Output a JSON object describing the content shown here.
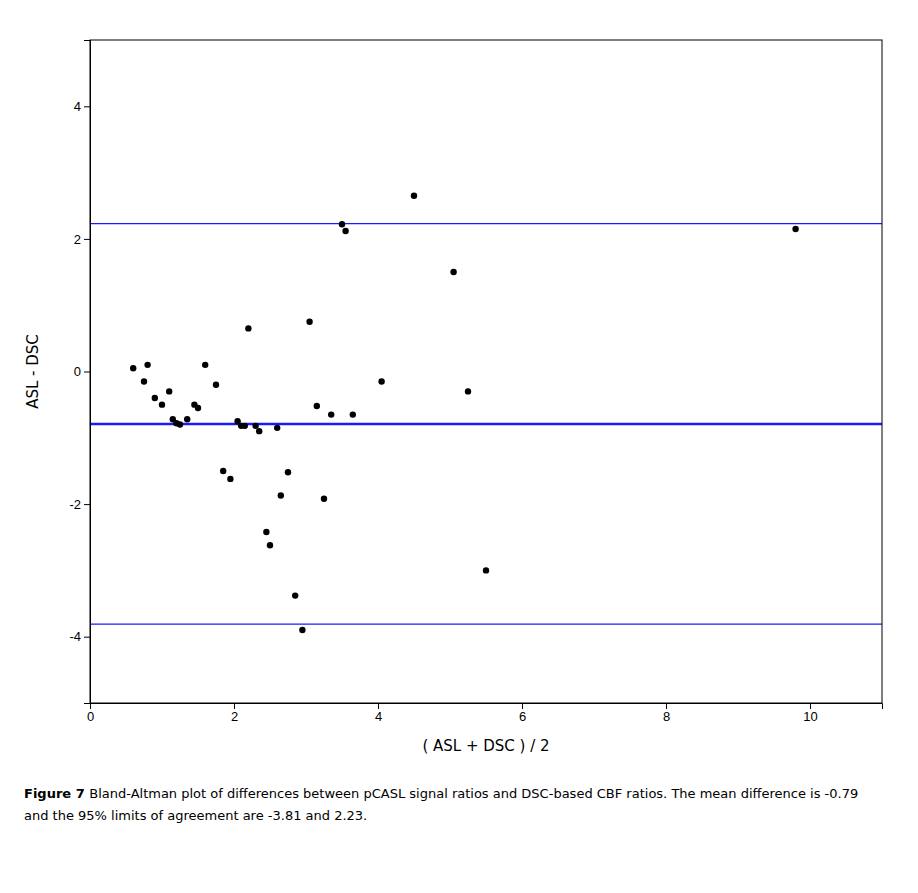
{
  "chart_data": {
    "type": "scatter",
    "x_label": "( ASL + DSC ) / 2",
    "y_label": "ASL - DSC",
    "x": [
      0.6,
      0.75,
      0.8,
      0.9,
      1.0,
      1.1,
      1.15,
      1.2,
      1.25,
      1.35,
      1.45,
      1.5,
      1.6,
      1.75,
      1.85,
      1.95,
      2.05,
      2.1,
      2.15,
      2.2,
      2.3,
      2.35,
      2.45,
      2.5,
      2.6,
      2.65,
      2.75,
      2.85,
      2.95,
      3.05,
      3.15,
      3.25,
      3.35,
      3.5,
      3.55,
      3.65,
      4.05,
      4.5,
      5.05,
      5.25,
      5.5,
      9.8
    ],
    "values": [
      0.05,
      -0.15,
      0.1,
      -0.4,
      -0.5,
      -0.3,
      -0.72,
      -0.78,
      -0.8,
      -0.72,
      -0.5,
      -0.55,
      0.1,
      -0.2,
      -1.5,
      -1.62,
      -0.75,
      -0.82,
      -0.82,
      0.65,
      -0.82,
      -0.9,
      -2.42,
      -2.62,
      -0.85,
      -1.87,
      -1.52,
      -3.38,
      -3.9,
      0.75,
      -0.52,
      -1.92,
      -0.65,
      2.22,
      2.12,
      -0.65,
      -0.15,
      2.65,
      1.5,
      -0.3,
      -3.0,
      2.15
    ],
    "color": "black",
    "lines": {
      "values": [
        -0.79,
        2.23,
        -3.81
      ],
      "color": "#1a1aff"
    },
    "xlim": [
      0,
      11
    ],
    "ylim": [
      -5,
      5
    ],
    "xticks": [
      0,
      2,
      4,
      6,
      8,
      10
    ],
    "yticks": [
      -4,
      -2,
      0,
      2,
      4
    ],
    "grid": false,
    "caption": [
      [
        {
          "text": "Figure 7 ",
          "weight": "bold"
        },
        {
          "text": "Bland-Altman plot of differences between pCASL signal ratios and DSC-based CBF ratios. The mean difference is -0.79",
          "weight": "normal"
        }
      ],
      [
        {
          "text": "and the 95% limits of agreement are -3.81 and 2.23.",
          "weight": "normal"
        }
      ]
    ]
  }
}
